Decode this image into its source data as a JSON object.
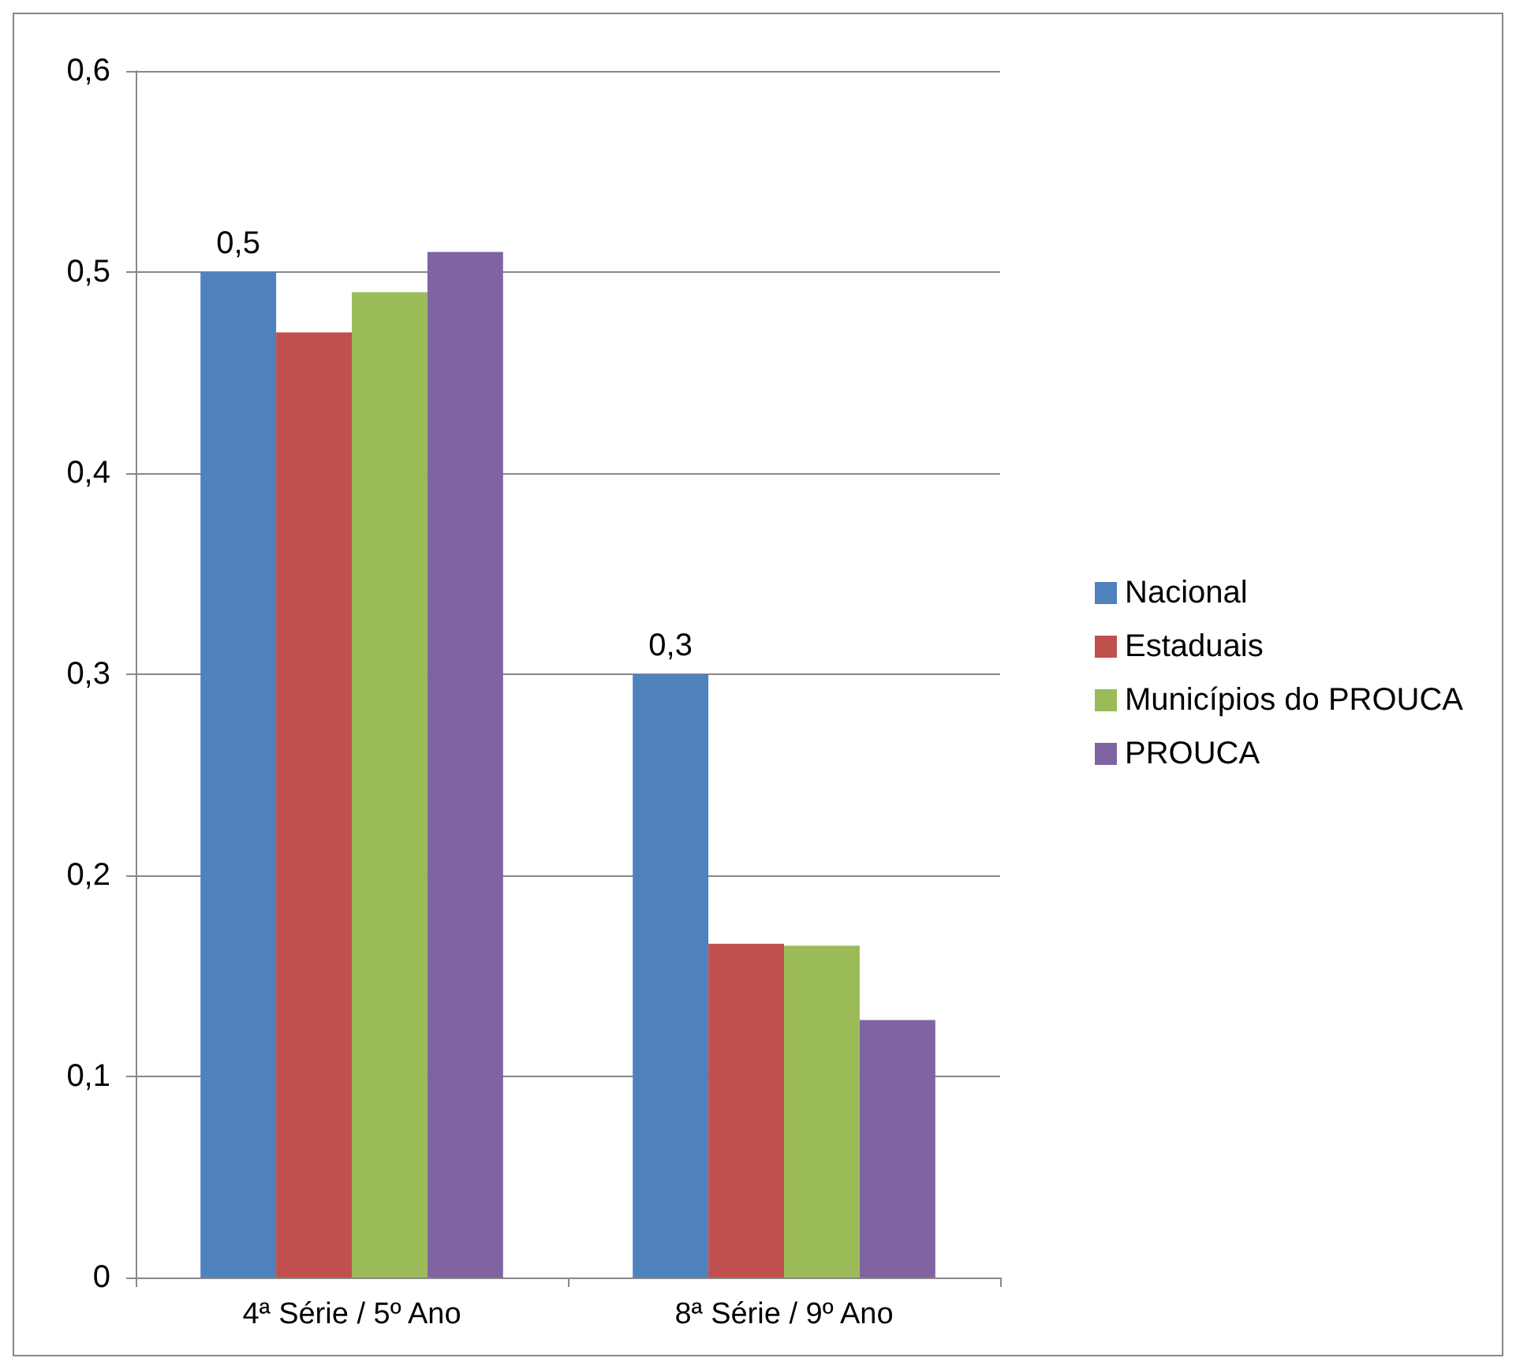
{
  "chart_data": {
    "type": "bar",
    "categories": [
      "4ª Série / 5º Ano",
      "8ª Série / 9º Ano"
    ],
    "series": [
      {
        "name": "Nacional",
        "color": "#4f81bd",
        "values": [
          0.5,
          0.3
        ],
        "value_labels": [
          "0,5",
          "0,3"
        ]
      },
      {
        "name": "Estaduais",
        "color": "#c0504d",
        "values": [
          0.47,
          0.166
        ]
      },
      {
        "name": "Municípios do PROUCA",
        "color": "#9bbb59",
        "values": [
          0.49,
          0.165
        ]
      },
      {
        "name": "PROUCA",
        "color": "#8064a2",
        "values": [
          0.51,
          0.128
        ]
      }
    ],
    "ylim": [
      0,
      0.6
    ],
    "yticks": [
      {
        "value": 0,
        "label": "0"
      },
      {
        "value": 0.1,
        "label": "0,1"
      },
      {
        "value": 0.2,
        "label": "0,2"
      },
      {
        "value": 0.3,
        "label": "0,3"
      },
      {
        "value": 0.4,
        "label": "0,4"
      },
      {
        "value": 0.5,
        "label": "0,5"
      },
      {
        "value": 0.6,
        "label": "0,6"
      }
    ],
    "grid": "y",
    "legend": "right"
  }
}
